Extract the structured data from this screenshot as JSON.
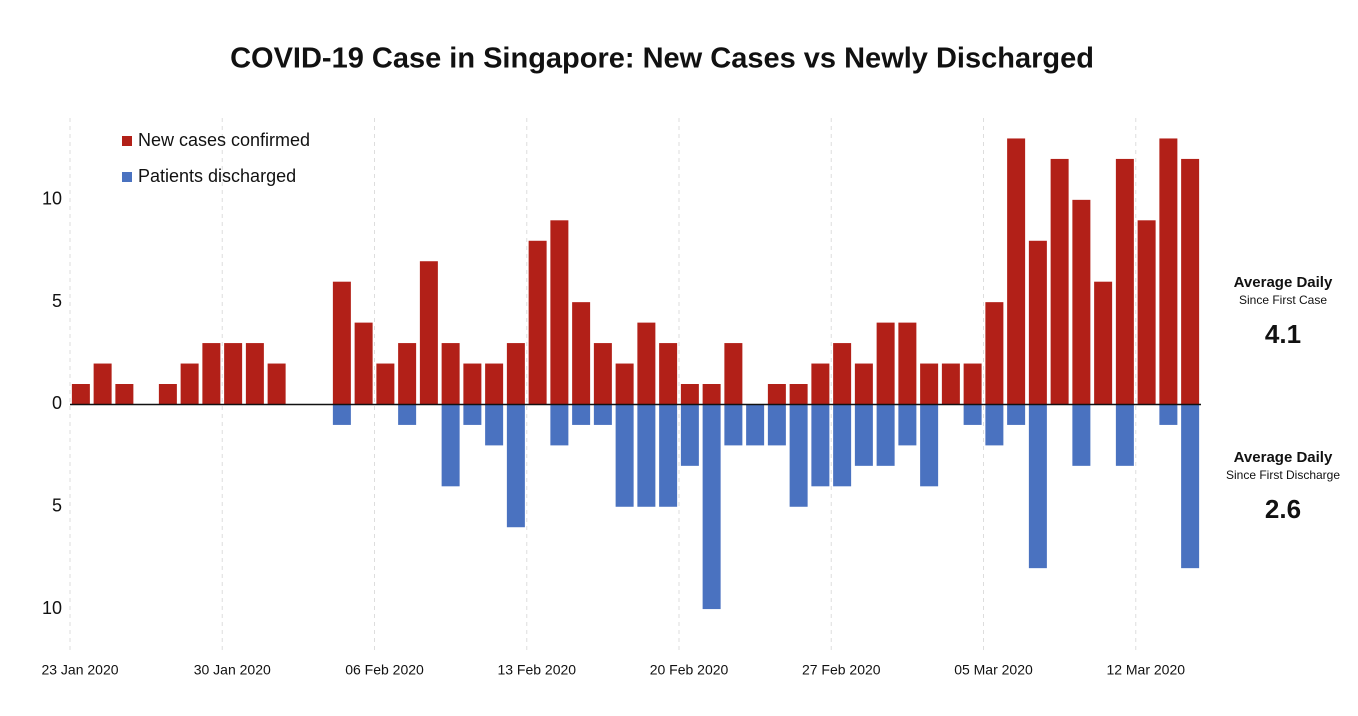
{
  "chart_data": {
    "type": "bar",
    "title": "COVID-19 Case in Singapore: New Cases vs Newly Discharged",
    "categories": [
      "23 Jan 2020",
      null,
      null,
      null,
      null,
      null,
      null,
      "30 Jan 2020",
      null,
      null,
      null,
      null,
      null,
      null,
      "06 Feb 2020",
      null,
      null,
      null,
      null,
      null,
      null,
      "13 Feb 2020",
      null,
      null,
      null,
      null,
      null,
      null,
      "20 Feb 2020",
      null,
      null,
      null,
      null,
      null,
      null,
      "27 Feb 2020",
      null,
      null,
      null,
      null,
      null,
      null,
      "05 Mar 2020",
      null,
      null,
      null,
      null,
      null,
      null,
      "12 Mar 2020",
      null,
      null
    ],
    "series": [
      {
        "name": "New cases confirmed",
        "color": "#b22018",
        "values": [
          1,
          2,
          1,
          0,
          1,
          2,
          3,
          3,
          3,
          2,
          0,
          0,
          6,
          4,
          2,
          3,
          7,
          3,
          2,
          2,
          3,
          8,
          9,
          5,
          3,
          2,
          4,
          3,
          1,
          1,
          3,
          0,
          1,
          1,
          2,
          3,
          2,
          4,
          4,
          2,
          2,
          2,
          5,
          13,
          8,
          12,
          10,
          6,
          12,
          9,
          13,
          12
        ]
      },
      {
        "name": "Patients discharged",
        "color": "#4a72c0",
        "values": [
          0,
          0,
          0,
          0,
          0,
          0,
          0,
          0,
          0,
          0,
          0,
          0,
          -1,
          0,
          0,
          -1,
          0,
          -4,
          -1,
          -2,
          -6,
          0,
          -2,
          -1,
          -1,
          -5,
          -5,
          -5,
          -3,
          -10,
          -2,
          -2,
          -2,
          -5,
          -4,
          -4,
          -3,
          -3,
          -2,
          -4,
          0,
          -1,
          -2,
          -1,
          -8,
          0,
          -3,
          0,
          -3,
          0,
          -1,
          -8
        ]
      }
    ],
    "ylim": [
      -12,
      14
    ],
    "yticks": [
      {
        "value": -10,
        "label": "10"
      },
      {
        "value": -5,
        "label": "5"
      },
      0,
      5,
      10
    ],
    "grid": true,
    "legend": "top-left",
    "annotations": [
      {
        "title": "Average Daily",
        "subtitle": "Since First Case",
        "value": "4.1",
        "color": "#b22018"
      },
      {
        "title": "Average Daily",
        "subtitle": "Since First Discharge",
        "value": "2.6",
        "color": "#4a72c0"
      }
    ]
  }
}
